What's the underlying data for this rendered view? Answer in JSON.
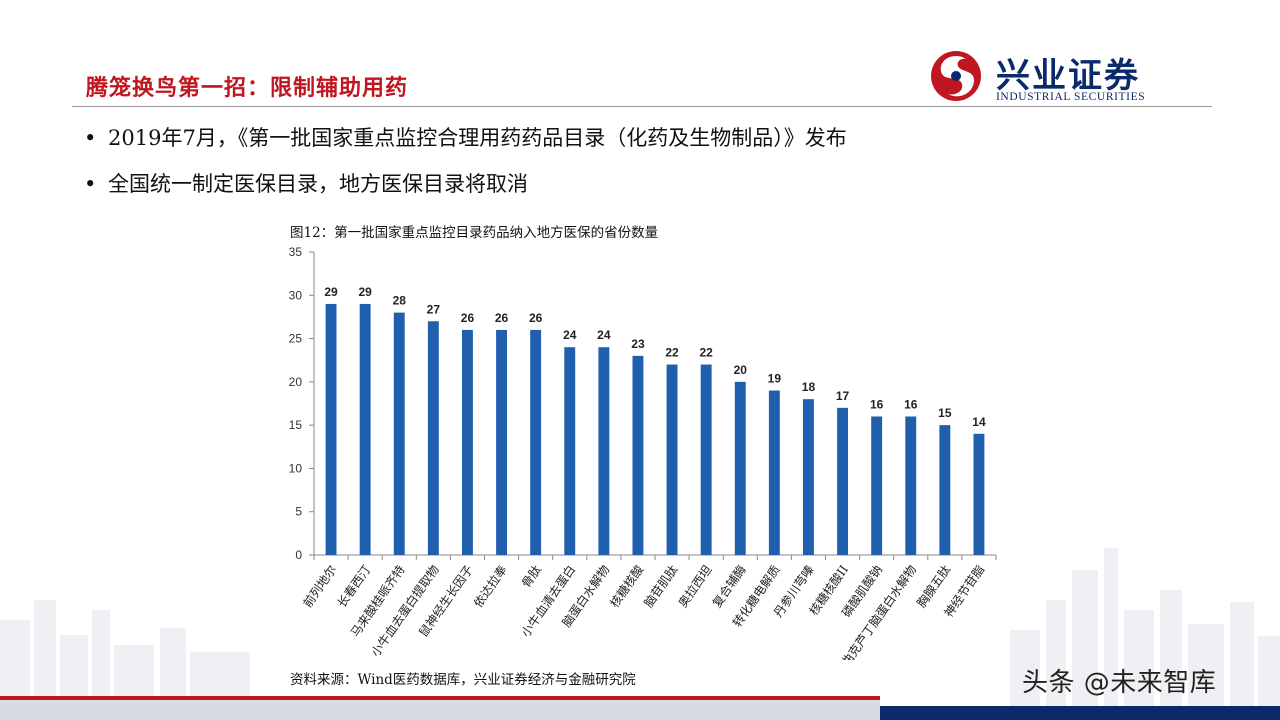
{
  "slide": {
    "title": "腾笼换鸟第一招：限制辅助用药",
    "bullets": [
      "2019年7月，《第一批国家重点监控合理用药药品目录（化药及生物制品）》发布",
      "全国统一制定医保目录，地方医保目录将取消"
    ],
    "logo": {
      "cn": "兴业证券",
      "en": "INDUSTRIAL SECURITIES",
      "icon": "industrial-securities-logo-icon"
    },
    "source": "资料来源：Wind医药数据库，兴业证券经济与金融研究院",
    "watermark": "头条 @未来智库"
  },
  "colors": {
    "accent_red": "#c0161f",
    "brand_navy": "#0b2a6b",
    "bar_blue": "#1f5fae"
  },
  "chart_data": {
    "type": "bar",
    "title": "图12：第一批国家重点监控目录药品纳入地方医保的省份数量",
    "categories": [
      "前列地尔",
      "长春西汀",
      "马来酸桂哌齐特",
      "小牛血去蛋白提取物",
      "鼠神经生长因子",
      "依达拉奉",
      "骨肽",
      "小牛血清去蛋白",
      "脑蛋白水解物",
      "核糖核酸",
      "脑苷肌肽",
      "奥拉西坦",
      "复合辅酶",
      "转化糖电解质",
      "丹参川芎嗪",
      "核糖核酸II",
      "磷酸肌酸钠",
      "曲克芦丁脑蛋白水解物",
      "胸腺五肽",
      "神经节苷脂"
    ],
    "values": [
      29,
      29,
      28,
      27,
      26,
      26,
      26,
      24,
      24,
      23,
      22,
      22,
      20,
      19,
      18,
      17,
      16,
      16,
      15,
      14
    ],
    "ylim": [
      0,
      35
    ],
    "yticks": [
      0,
      5,
      10,
      15,
      20,
      25,
      30,
      35
    ],
    "grid": false,
    "data_labels": true
  }
}
